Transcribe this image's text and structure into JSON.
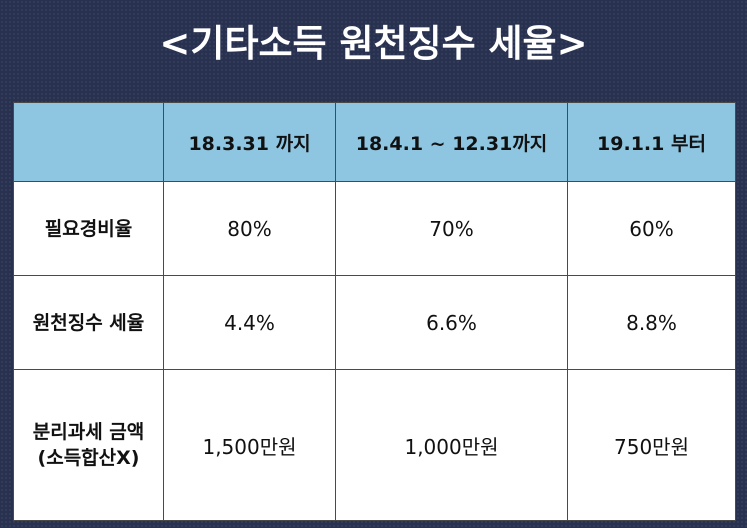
{
  "title": "<기타소득 원천징수 세율>",
  "table": {
    "headers": [
      "",
      "18.3.31 까지",
      "18.4.1 ~ 12.31까지",
      "19.1.1 부터"
    ],
    "rows": [
      {
        "label": "필요경비율",
        "label2": "",
        "values": [
          "80%",
          "70%",
          "60%"
        ]
      },
      {
        "label": "원천징수 세율",
        "label2": "",
        "values": [
          "4.4%",
          "6.6%",
          "8.8%"
        ]
      },
      {
        "label": "분리과세 금액",
        "label2": "(소득합산X)",
        "values": [
          "1,500만원",
          "1,000만원",
          "750만원"
        ]
      }
    ]
  }
}
